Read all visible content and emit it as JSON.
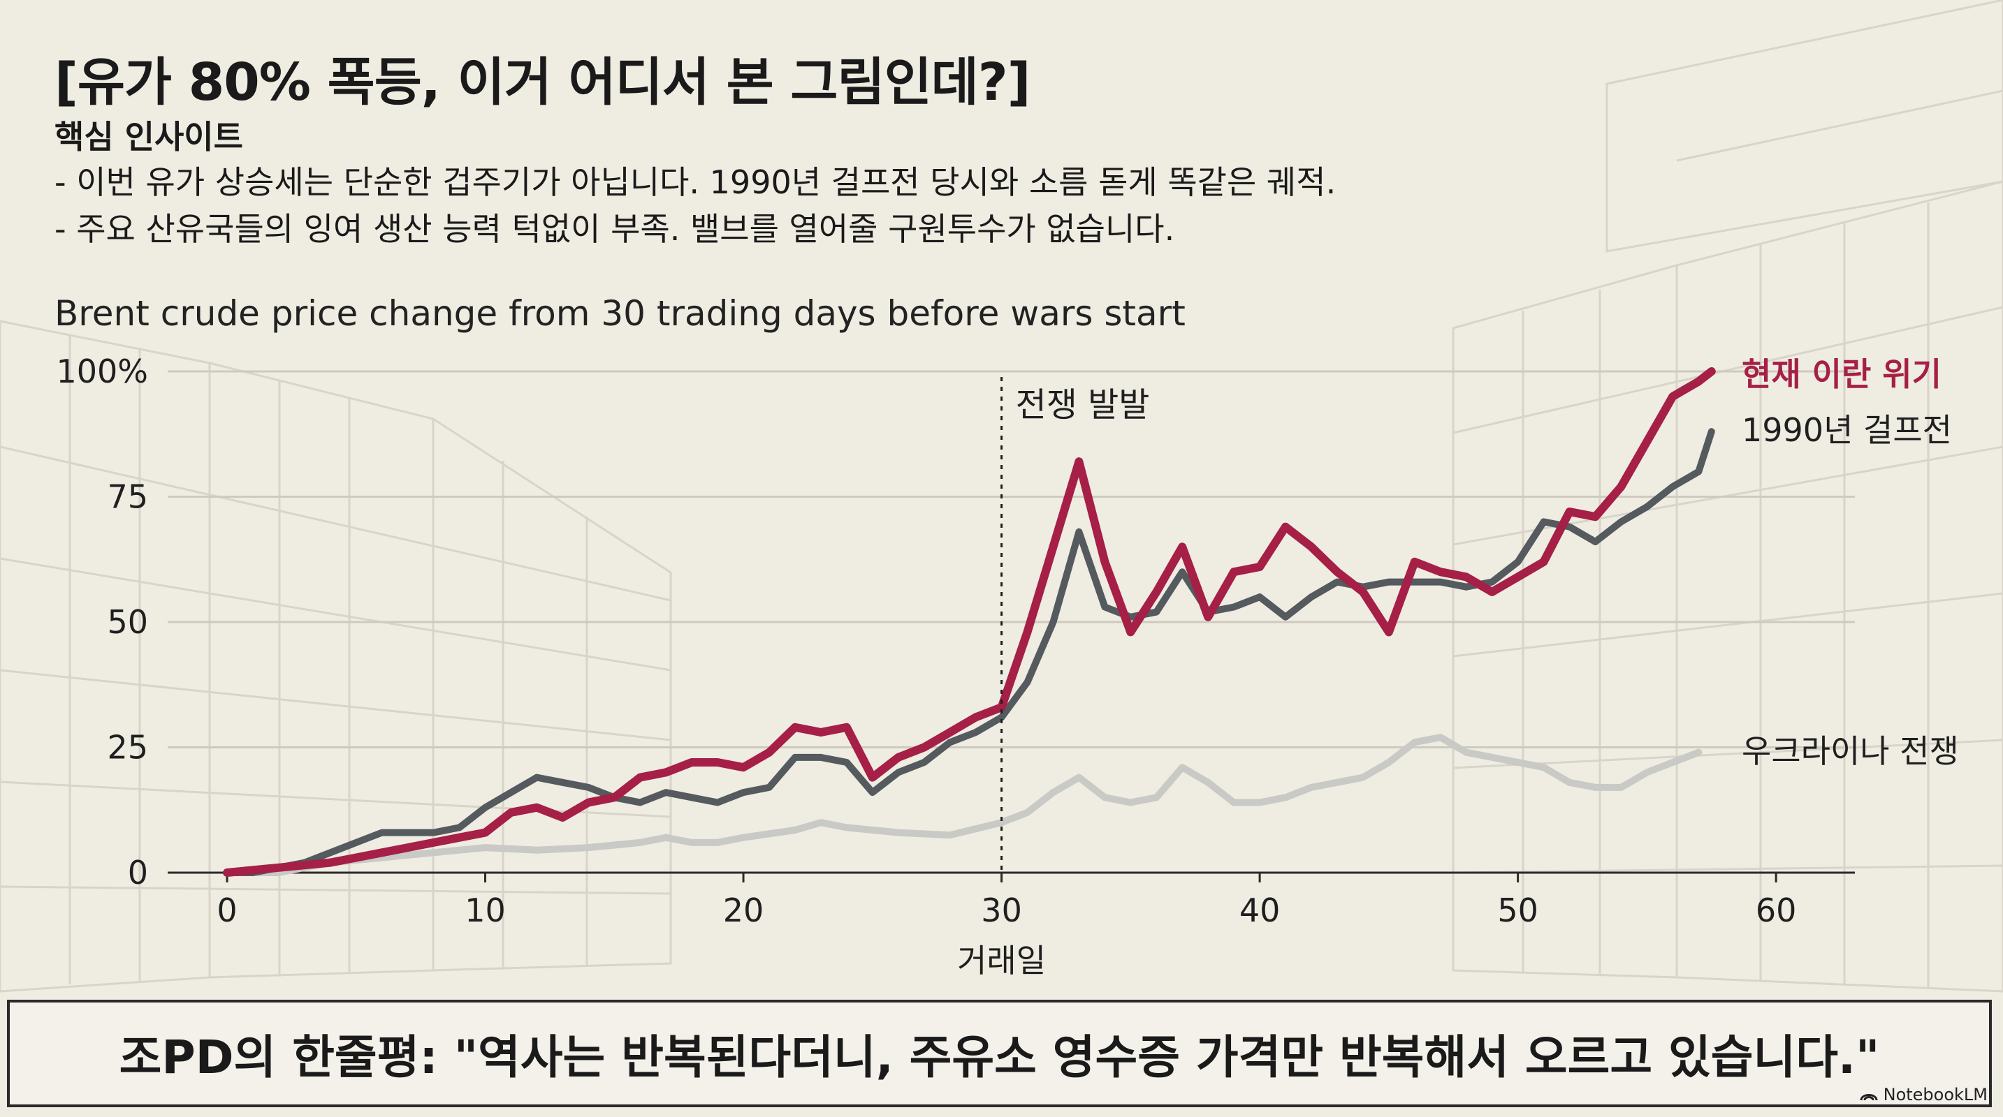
{
  "title": "[유가 80% 폭등, 이거 어디서 본 그림인데?]",
  "insights": {
    "heading": "핵심 인사이트",
    "lines": [
      "- 이번 유가 상승세는 단순한 겁주기가 아닙니다. 1990년 걸프전 당시와 소름 돋게 똑같은 궤적.",
      "- 주요 산유국들의 잉여 생산 능력 턱없이 부족. 밸브를 열어줄 구원투수가 없습니다."
    ]
  },
  "chart_data": {
    "type": "line",
    "title": "Brent crude price change from 30 trading days before wars start",
    "xlabel": "거래일",
    "ylabel": "",
    "xlim": [
      0,
      63
    ],
    "ylim": [
      0,
      100
    ],
    "x_ticks": [
      0,
      10,
      20,
      30,
      40,
      50,
      60
    ],
    "y_ticks": [
      {
        "value": 0,
        "label": "0"
      },
      {
        "value": 25,
        "label": "25"
      },
      {
        "value": 50,
        "label": "50"
      },
      {
        "value": 75,
        "label": "75"
      },
      {
        "value": 100,
        "label": "100%"
      }
    ],
    "grid": "horizontal",
    "annotation": {
      "x": 30,
      "label": "전쟁 발발"
    },
    "series": [
      {
        "name": "우크라이나 전쟁",
        "color": "#c9c9c6",
        "points": [
          [
            0,
            0
          ],
          [
            2,
            0
          ],
          [
            4,
            2
          ],
          [
            6,
            3
          ],
          [
            8,
            4
          ],
          [
            10,
            5
          ],
          [
            12,
            4.5
          ],
          [
            14,
            5
          ],
          [
            16,
            6
          ],
          [
            17,
            7
          ],
          [
            18,
            6
          ],
          [
            19,
            6
          ],
          [
            20,
            7
          ],
          [
            22,
            8.5
          ],
          [
            23,
            10
          ],
          [
            24,
            9
          ],
          [
            26,
            8
          ],
          [
            28,
            7.5
          ],
          [
            30,
            10
          ],
          [
            31,
            12
          ],
          [
            32,
            16
          ],
          [
            33,
            19
          ],
          [
            34,
            15
          ],
          [
            35,
            14
          ],
          [
            36,
            15
          ],
          [
            37,
            21
          ],
          [
            38,
            18
          ],
          [
            39,
            14
          ],
          [
            40,
            14
          ],
          [
            41,
            15
          ],
          [
            42,
            17
          ],
          [
            44,
            19
          ],
          [
            45,
            22
          ],
          [
            46,
            26
          ],
          [
            47,
            27
          ],
          [
            48,
            24
          ],
          [
            50,
            22
          ],
          [
            51,
            21
          ],
          [
            52,
            18
          ],
          [
            53,
            17
          ],
          [
            54,
            17
          ],
          [
            55,
            20
          ],
          [
            56,
            22
          ],
          [
            57,
            24
          ]
        ]
      },
      {
        "name": "1990년 걸프전",
        "color": "#545a5e",
        "points": [
          [
            0,
            0
          ],
          [
            1,
            0
          ],
          [
            2,
            1
          ],
          [
            3,
            2
          ],
          [
            4,
            4
          ],
          [
            5,
            6
          ],
          [
            6,
            8
          ],
          [
            7,
            8
          ],
          [
            8,
            8
          ],
          [
            9,
            9
          ],
          [
            10,
            13
          ],
          [
            11,
            16
          ],
          [
            12,
            19
          ],
          [
            13,
            18
          ],
          [
            14,
            17
          ],
          [
            15,
            15
          ],
          [
            16,
            14
          ],
          [
            17,
            16
          ],
          [
            18,
            15
          ],
          [
            19,
            14
          ],
          [
            20,
            16
          ],
          [
            21,
            17
          ],
          [
            22,
            23
          ],
          [
            23,
            23
          ],
          [
            24,
            22
          ],
          [
            25,
            16
          ],
          [
            26,
            20
          ],
          [
            27,
            22
          ],
          [
            28,
            26
          ],
          [
            29,
            28
          ],
          [
            30,
            31
          ],
          [
            31,
            38
          ],
          [
            32,
            50
          ],
          [
            33,
            68
          ],
          [
            34,
            53
          ],
          [
            35,
            51
          ],
          [
            36,
            52
          ],
          [
            37,
            60
          ],
          [
            38,
            52
          ],
          [
            39,
            53
          ],
          [
            40,
            55
          ],
          [
            41,
            51
          ],
          [
            42,
            55
          ],
          [
            43,
            58
          ],
          [
            44,
            57
          ],
          [
            45,
            58
          ],
          [
            46,
            58
          ],
          [
            47,
            58
          ],
          [
            48,
            57
          ],
          [
            49,
            58
          ],
          [
            50,
            62
          ],
          [
            51,
            70
          ],
          [
            52,
            69
          ],
          [
            53,
            66
          ],
          [
            54,
            70
          ],
          [
            55,
            73
          ],
          [
            56,
            77
          ],
          [
            57,
            80
          ],
          [
            57.5,
            88
          ]
        ]
      },
      {
        "name": "현재 이란 위기",
        "color": "#a51f46",
        "points": [
          [
            0,
            0
          ],
          [
            2,
            1
          ],
          [
            4,
            2
          ],
          [
            5,
            3
          ],
          [
            6,
            4
          ],
          [
            7,
            5
          ],
          [
            8,
            6
          ],
          [
            9,
            7
          ],
          [
            10,
            8
          ],
          [
            11,
            12
          ],
          [
            12,
            13
          ],
          [
            13,
            11
          ],
          [
            14,
            14
          ],
          [
            15,
            15
          ],
          [
            16,
            19
          ],
          [
            17,
            20
          ],
          [
            18,
            22
          ],
          [
            19,
            22
          ],
          [
            20,
            21
          ],
          [
            21,
            24
          ],
          [
            22,
            29
          ],
          [
            23,
            28
          ],
          [
            24,
            29
          ],
          [
            25,
            19
          ],
          [
            26,
            23
          ],
          [
            27,
            25
          ],
          [
            28,
            28
          ],
          [
            29,
            31
          ],
          [
            30,
            33
          ],
          [
            31,
            48
          ],
          [
            32,
            65
          ],
          [
            33,
            82
          ],
          [
            34,
            62
          ],
          [
            35,
            48
          ],
          [
            36,
            56
          ],
          [
            37,
            65
          ],
          [
            38,
            51
          ],
          [
            39,
            60
          ],
          [
            40,
            61
          ],
          [
            41,
            69
          ],
          [
            42,
            65
          ],
          [
            43,
            60
          ],
          [
            44,
            56
          ],
          [
            45,
            48
          ],
          [
            46,
            62
          ],
          [
            47,
            60
          ],
          [
            48,
            59
          ],
          [
            49,
            56
          ],
          [
            50,
            59
          ],
          [
            51,
            62
          ],
          [
            52,
            72
          ],
          [
            53,
            71
          ],
          [
            54,
            77
          ],
          [
            55,
            86
          ],
          [
            56,
            95
          ],
          [
            57,
            98
          ],
          [
            57.5,
            100
          ]
        ]
      }
    ]
  },
  "footer": {
    "text": "조PD의 한줄평: \"역사는 반복된다더니, 주유소 영수증 가격만 반복해서 오르고 있습니다.\""
  },
  "brand": {
    "name": "NotebookLM",
    "icon": "notebooklm-logo-icon"
  }
}
